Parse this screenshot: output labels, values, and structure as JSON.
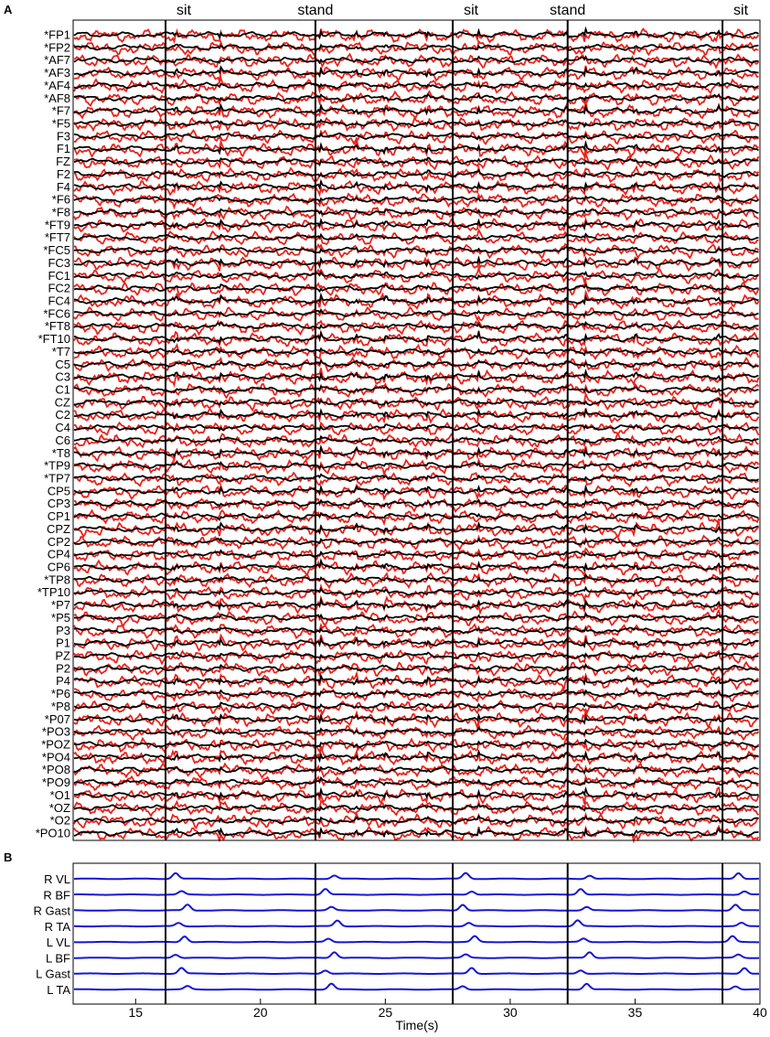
{
  "panels": {
    "a": "A",
    "b": "B"
  },
  "colors": {
    "eeg_black": "#000000",
    "eeg_red": "#e8231c",
    "emg": "#1515d6",
    "frame": "#000000"
  },
  "chart_data": [
    {
      "type": "line",
      "panel": "A",
      "xlim": [
        12.5,
        40
      ],
      "xticks": [
        15,
        20,
        25,
        30,
        35,
        40
      ],
      "events": [
        {
          "label": "sit",
          "x": 16.2
        },
        {
          "label": "stand",
          "x": 22.2
        },
        {
          "label": "sit",
          "x": 27.7
        },
        {
          "label": "stand",
          "x": 32.3
        },
        {
          "label": "sit",
          "x": 38.5
        }
      ],
      "series_colors": [
        "black",
        "red"
      ],
      "channels": [
        "*FP1",
        "*FP2",
        "*AF7",
        "*AF3",
        "*AF4",
        "*AF8",
        "*F7",
        "*F5",
        "F3",
        "F1",
        "FZ",
        "F2",
        "F4",
        "*F6",
        "*F8",
        "*FT9",
        "*FT7",
        "*FC5",
        "FC3",
        "FC1",
        "FC2",
        "FC4",
        "*FC6",
        "*FT8",
        "*FT10",
        "*T7",
        "C5",
        "C3",
        "C1",
        "CZ",
        "C2",
        "C4",
        "C6",
        "*T8",
        "*TP9",
        "*TP7",
        "CP5",
        "CP3",
        "CP1",
        "CPZ",
        "CP2",
        "CP4",
        "CP6",
        "*TP8",
        "*TP10",
        "*P7",
        "*P5",
        "P3",
        "P1",
        "PZ",
        "P2",
        "P4",
        "*P6",
        "*P8",
        "*P07",
        "*PO3",
        "*POZ",
        "*PO4",
        "*PO8",
        "*PO9",
        "*O1",
        "*OZ",
        "*O2",
        "*PO10"
      ]
    },
    {
      "type": "line",
      "panel": "B",
      "xlim": [
        12.5,
        40
      ],
      "xticks": [
        15,
        20,
        25,
        30,
        35,
        40
      ],
      "xlabel": "Time(s)",
      "events": [
        16.2,
        22.2,
        27.7,
        32.3,
        38.5
      ],
      "channels": [
        "R VL",
        "R BF",
        "R Gast",
        "R TA",
        "L VL",
        "L BF",
        "L Gast",
        "L TA"
      ]
    }
  ]
}
